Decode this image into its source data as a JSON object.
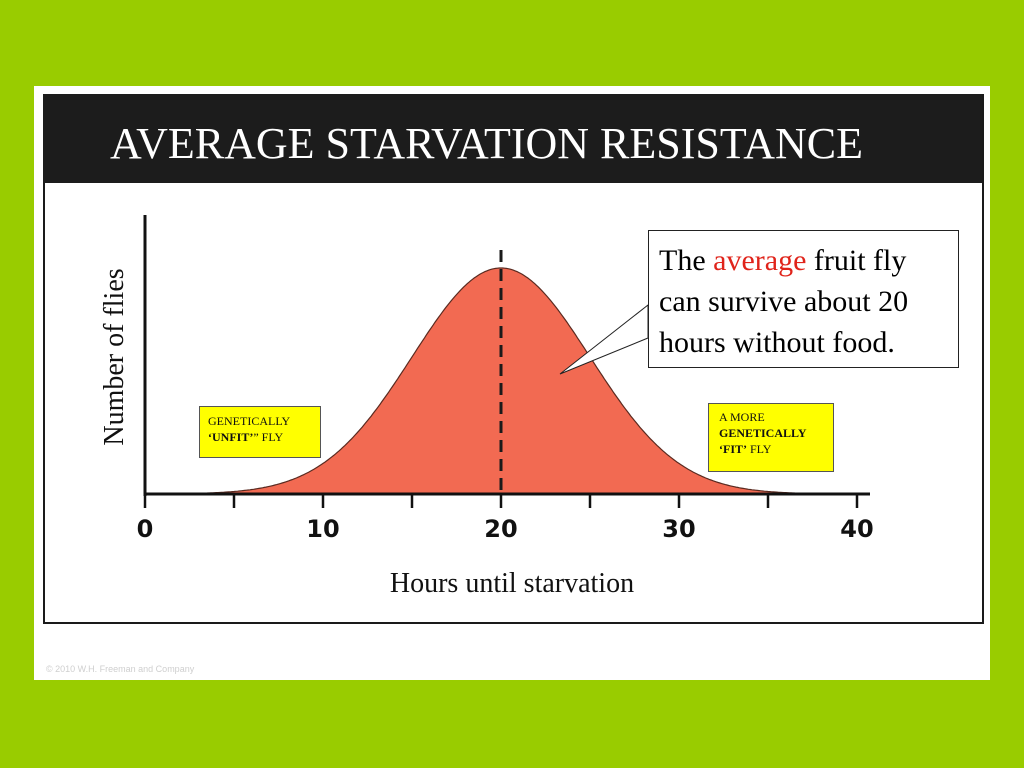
{
  "page": {
    "title": "AVERAGE STARVATION RESISTANCE",
    "copyright": "© 2010 W.H. Freeman and Company"
  },
  "colors": {
    "background": "#99cc00",
    "title_bar": "#1c1c1c",
    "curve_fill": "#f26a52",
    "callout_highlight": "#e0241b",
    "label_box": "#ffff00"
  },
  "callout": {
    "text_before": "The ",
    "highlight": "average",
    "text_after": " fruit fly can survive about 20 hours without food."
  },
  "labels": {
    "unfit": {
      "line1": "GENETICALLY",
      "bold": "‘UNFIT’",
      "suffix": "” FLY"
    },
    "fit": {
      "line1": "A MORE",
      "bold_line2": "GENETICALLY",
      "bold": "‘FIT’",
      "suffix": " FLY"
    }
  },
  "chart_data": {
    "type": "area",
    "title": "AVERAGE STARVATION RESISTANCE",
    "xlabel": "Hours until starvation",
    "ylabel": "Number of flies",
    "xlim": [
      0,
      40
    ],
    "ylim": [
      0,
      1
    ],
    "xticks": [
      0,
      10,
      20,
      30,
      40
    ],
    "minor_xticks": [
      5,
      15,
      25,
      35
    ],
    "distribution": "normal",
    "mean": 20,
    "std_dev": 5,
    "mean_marker": 20,
    "series": [
      {
        "x": [
          4,
          6,
          8,
          10,
          12,
          14,
          16,
          18,
          20,
          22,
          24,
          26,
          28,
          30,
          32,
          34,
          36
        ],
        "values": [
          0.01,
          0.03,
          0.07,
          0.14,
          0.28,
          0.49,
          0.73,
          0.92,
          1.0,
          0.92,
          0.73,
          0.49,
          0.28,
          0.14,
          0.07,
          0.03,
          0.01
        ]
      }
    ],
    "grid": false,
    "legend": "none"
  }
}
